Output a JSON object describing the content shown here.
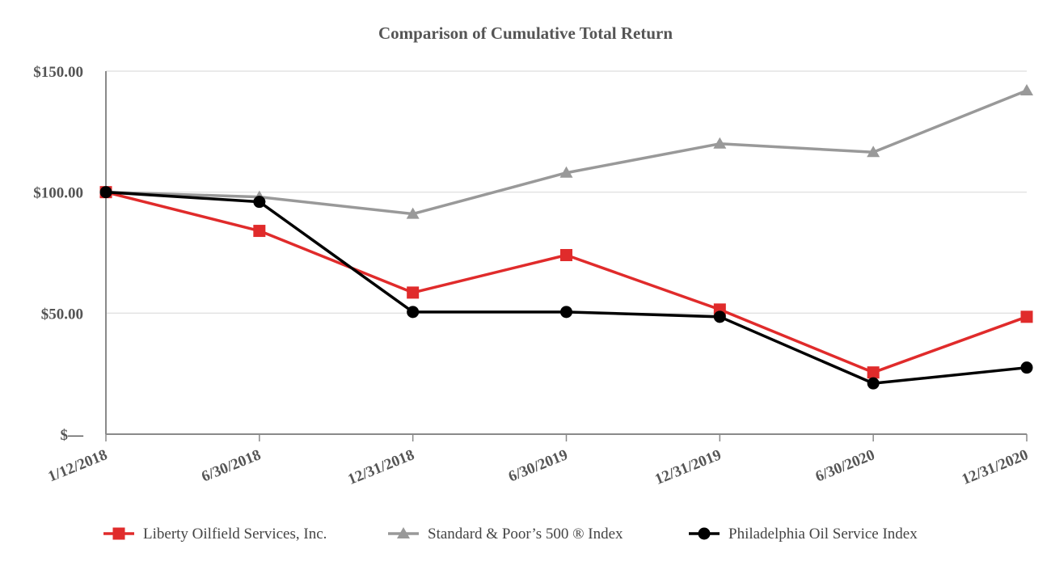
{
  "chart_data": {
    "type": "line",
    "title": "Comparison of Cumulative Total Return",
    "xlabel": "",
    "ylabel": "",
    "categories": [
      "1/12/2018",
      "6/30/2018",
      "12/31/2018",
      "6/30/2019",
      "12/31/2019",
      "6/30/2020",
      "12/31/2020"
    ],
    "ylim": [
      0,
      150
    ],
    "yticks": [
      {
        "value": 0,
        "label": "$—"
      },
      {
        "value": 50,
        "label": "$50.00"
      },
      {
        "value": 100,
        "label": "$100.00"
      },
      {
        "value": 150,
        "label": "$150.00"
      }
    ],
    "grid": true,
    "legend_position": "bottom",
    "series": [
      {
        "name": "Liberty Oilfield Services, Inc.",
        "color": "#e02b2b",
        "marker": "square",
        "values": [
          100.0,
          84.0,
          58.5,
          74.0,
          51.5,
          25.5,
          48.5
        ]
      },
      {
        "name": "Standard & Poor’s 500 ® Index",
        "color": "#999999",
        "marker": "triangle",
        "values": [
          100.0,
          98.0,
          91.0,
          108.0,
          120.0,
          116.5,
          142.0
        ]
      },
      {
        "name": "Philadelphia Oil Service Index",
        "color": "#000000",
        "marker": "circle",
        "values": [
          100.0,
          96.0,
          50.5,
          50.5,
          48.5,
          21.0,
          27.5
        ]
      }
    ]
  }
}
